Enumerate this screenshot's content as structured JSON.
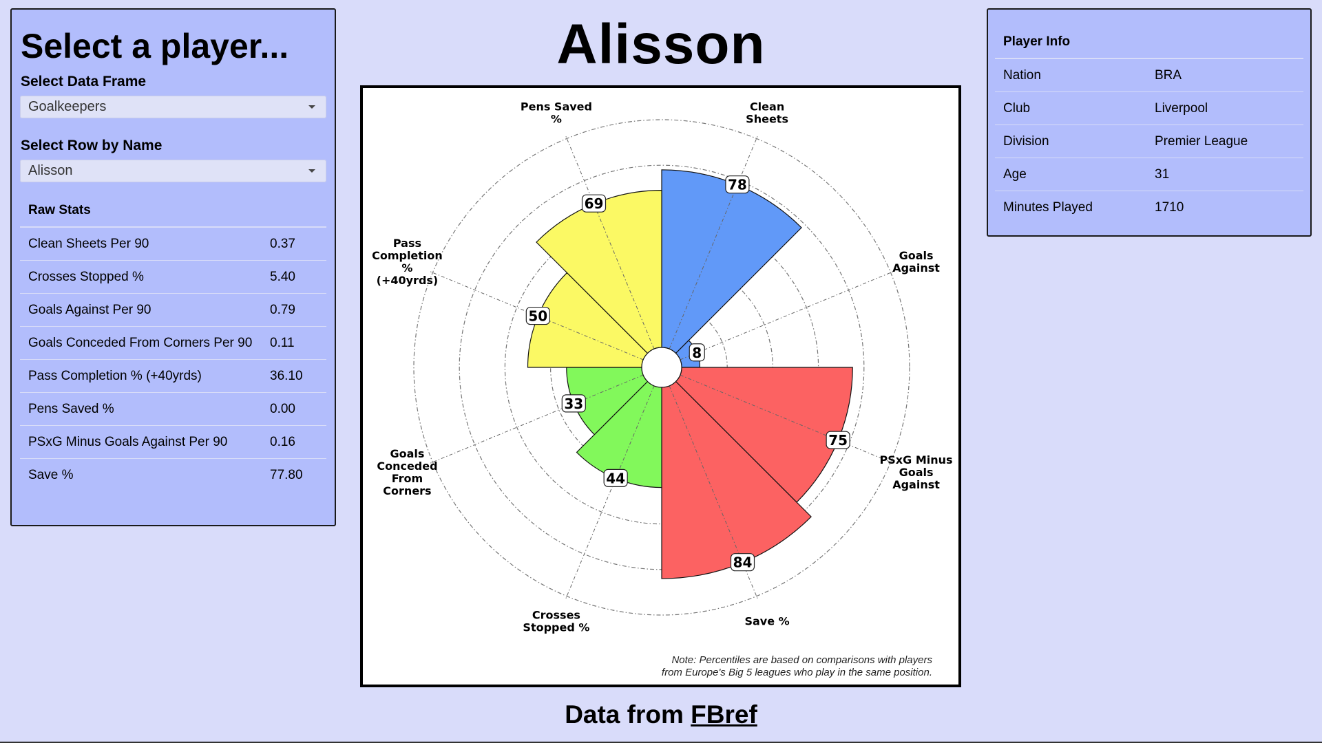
{
  "left_panel": {
    "heading": "Select a player...",
    "data_frame_label": "Select Data Frame",
    "data_frame_value": "Goalkeepers",
    "row_label": "Select Row by Name",
    "row_value": "Alisson",
    "raw_stats_header": "Raw Stats",
    "raw_stats": [
      {
        "name": "Clean Sheets Per 90",
        "value": "0.37"
      },
      {
        "name": "Crosses Stopped %",
        "value": "5.40"
      },
      {
        "name": "Goals Against Per 90",
        "value": "0.79"
      },
      {
        "name": "Goals Conceded From Corners Per 90",
        "value": "0.11"
      },
      {
        "name": "Pass Completion % (+40yrds)",
        "value": "36.10"
      },
      {
        "name": "Pens Saved %",
        "value": "0.00"
      },
      {
        "name": "PSxG Minus Goals Against Per 90",
        "value": "0.16"
      },
      {
        "name": "Save %",
        "value": "77.80"
      }
    ]
  },
  "title": "Alisson",
  "player_info": {
    "header": "Player Info",
    "rows": [
      {
        "key": "Nation",
        "value": "BRA"
      },
      {
        "key": "Club",
        "value": "Liverpool"
      },
      {
        "key": "Division",
        "value": "Premier League"
      },
      {
        "key": "Age",
        "value": "31"
      },
      {
        "key": "Minutes Played",
        "value": "1710"
      }
    ]
  },
  "chart_data": {
    "type": "polar-bar",
    "r_range": [
      0,
      100
    ],
    "grid_rings": [
      20,
      40,
      60,
      80,
      100
    ],
    "categories": [
      {
        "label": [
          "Clean",
          "Sheets"
        ],
        "value": 78,
        "color": "#6199f8"
      },
      {
        "label": [
          "Goals",
          "Against"
        ],
        "value": 8,
        "color": "#6199f8"
      },
      {
        "label": [
          "PSxG Minus",
          "Goals",
          "Against"
        ],
        "value": 75,
        "color": "#fc6262"
      },
      {
        "label": [
          "Save %"
        ],
        "value": 84,
        "color": "#fc6262"
      },
      {
        "label": [
          "Crosses",
          "Stopped %"
        ],
        "value": 44,
        "color": "#82f85b"
      },
      {
        "label": [
          "Goals",
          "Conceded",
          "From",
          "Corners"
        ],
        "value": 33,
        "color": "#82f85b"
      },
      {
        "label": [
          "Pass",
          "Completion",
          "%",
          "(+40yrds)"
        ],
        "value": 50,
        "color": "#fbf964"
      },
      {
        "label": [
          "Pens Saved",
          "%"
        ],
        "value": 69,
        "color": "#fbf964"
      }
    ],
    "note": "Note: Percentiles are based on comparisons with players from Europe's Big 5 leagues who play in the same position."
  },
  "footer": {
    "prefix": "Data from ",
    "link_text": "FBref"
  }
}
